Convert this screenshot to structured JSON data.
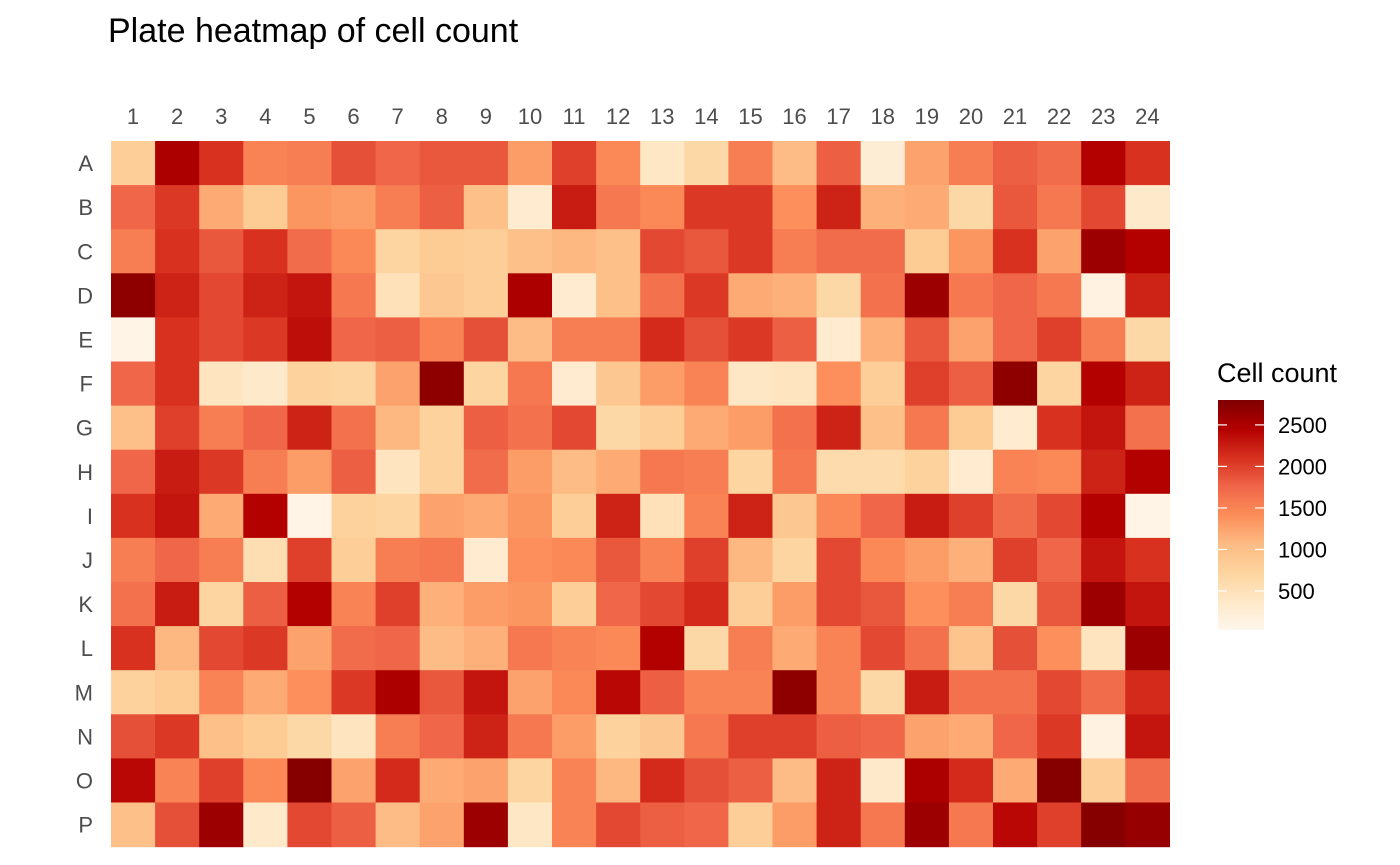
{
  "chart_data": {
    "type": "heatmap",
    "title": "Plate heatmap of cell count",
    "columns": [
      "1",
      "2",
      "3",
      "4",
      "5",
      "6",
      "7",
      "8",
      "9",
      "10",
      "11",
      "12",
      "13",
      "14",
      "15",
      "16",
      "17",
      "18",
      "19",
      "20",
      "21",
      "22",
      "23",
      "24"
    ],
    "rows": [
      "A",
      "B",
      "C",
      "D",
      "E",
      "F",
      "G",
      "H",
      "I",
      "J",
      "K",
      "L",
      "M",
      "N",
      "O",
      "P"
    ],
    "values": [
      [
        800,
        2500,
        2100,
        1500,
        1550,
        1900,
        1750,
        1850,
        1850,
        1300,
        2000,
        1450,
        400,
        650,
        1550,
        1050,
        1800,
        250,
        1250,
        1550,
        1800,
        1700,
        2450,
        2100
      ],
      [
        1750,
        2050,
        1200,
        850,
        1350,
        1300,
        1550,
        1800,
        1000,
        300,
        2250,
        1600,
        1450,
        2050,
        2050,
        1400,
        2200,
        1150,
        1200,
        650,
        1850,
        1600,
        1950,
        350
      ],
      [
        1550,
        2100,
        1850,
        2100,
        1700,
        1450,
        700,
        850,
        800,
        1000,
        1100,
        1000,
        1950,
        1850,
        2050,
        1550,
        1700,
        1700,
        850,
        1350,
        2100,
        1250,
        2600,
        2450
      ],
      [
        2700,
        2200,
        1950,
        2200,
        2300,
        1600,
        500,
        900,
        800,
        2500,
        300,
        1000,
        1650,
        2050,
        1200,
        1150,
        650,
        1650,
        2600,
        1600,
        1750,
        1600,
        150,
        2200
      ],
      [
        100,
        2100,
        1950,
        2050,
        2350,
        1750,
        1800,
        1500,
        1900,
        1050,
        1550,
        1550,
        2150,
        1900,
        2050,
        1800,
        300,
        1150,
        1850,
        1250,
        1750,
        2000,
        1550,
        650
      ],
      [
        1750,
        2100,
        450,
        350,
        750,
        700,
        1250,
        2700,
        700,
        1600,
        300,
        900,
        1300,
        1500,
        400,
        450,
        1400,
        800,
        2000,
        1800,
        2700,
        700,
        2450,
        2200
      ],
      [
        1000,
        2000,
        1550,
        1750,
        2200,
        1650,
        1100,
        750,
        1800,
        1650,
        1950,
        650,
        800,
        1200,
        1300,
        1650,
        2200,
        1000,
        1600,
        850,
        300,
        2100,
        2300,
        1650
      ],
      [
        1750,
        2250,
        2050,
        1550,
        1300,
        1800,
        450,
        750,
        1700,
        1300,
        1050,
        1200,
        1600,
        1550,
        700,
        1600,
        600,
        600,
        750,
        300,
        1500,
        1450,
        2200,
        2450
      ],
      [
        2100,
        2300,
        1200,
        2450,
        100,
        750,
        700,
        1250,
        1200,
        1350,
        800,
        2200,
        500,
        1500,
        2200,
        900,
        1450,
        1750,
        2250,
        2000,
        1700,
        1950,
        2450,
        100
      ],
      [
        1550,
        1750,
        1550,
        550,
        2000,
        800,
        1550,
        1600,
        300,
        1400,
        1450,
        1850,
        1500,
        2000,
        1100,
        700,
        1950,
        1450,
        1300,
        1150,
        2000,
        1750,
        2300,
        2100
      ],
      [
        1650,
        2250,
        700,
        1800,
        2450,
        1500,
        2000,
        1150,
        1300,
        1350,
        800,
        1750,
        1950,
        2150,
        800,
        1300,
        1950,
        1850,
        1400,
        1550,
        650,
        1850,
        2600,
        2300
      ],
      [
        2100,
        1100,
        1950,
        2050,
        1250,
        1700,
        1750,
        1050,
        1150,
        1600,
        1500,
        1450,
        2450,
        650,
        1550,
        1200,
        1500,
        1950,
        1650,
        950,
        1900,
        1400,
        450,
        2600
      ],
      [
        750,
        850,
        1500,
        1200,
        1400,
        2050,
        2500,
        1850,
        2300,
        1250,
        1450,
        2400,
        1800,
        1500,
        1500,
        2700,
        1500,
        650,
        2250,
        1650,
        1650,
        1950,
        1700,
        2150
      ],
      [
        1900,
        2050,
        1000,
        850,
        650,
        450,
        1550,
        1750,
        2200,
        1600,
        1300,
        750,
        900,
        1600,
        2000,
        2000,
        1800,
        1750,
        1250,
        1200,
        1750,
        2050,
        150,
        2300
      ],
      [
        2400,
        1500,
        2000,
        1450,
        2750,
        1250,
        2150,
        1200,
        1250,
        700,
        1500,
        1100,
        2150,
        1900,
        1800,
        1050,
        2200,
        350,
        2500,
        2150,
        1200,
        2750,
        800,
        1700
      ],
      [
        1000,
        1900,
        2600,
        350,
        1950,
        1800,
        1050,
        1250,
        2600,
        400,
        1500,
        1950,
        1800,
        1750,
        800,
        1300,
        2200,
        1600,
        2600,
        1600,
        2400,
        2000,
        2750,
        2650
      ]
    ],
    "color_scale": {
      "low": "#FFF7EC",
      "high": "#7F0000",
      "colors": [
        "#FFF7EC",
        "#FEE8C8",
        "#FDD49E",
        "#FDBB84",
        "#FC8D59",
        "#EF6548",
        "#D7301F",
        "#B30000",
        "#7F0000"
      ],
      "domain": [
        30,
        2800
      ]
    },
    "legend": {
      "title": "Cell count",
      "ticks": [
        500,
        1000,
        1500,
        2000,
        2500
      ],
      "placement": "right"
    },
    "grid": false
  }
}
